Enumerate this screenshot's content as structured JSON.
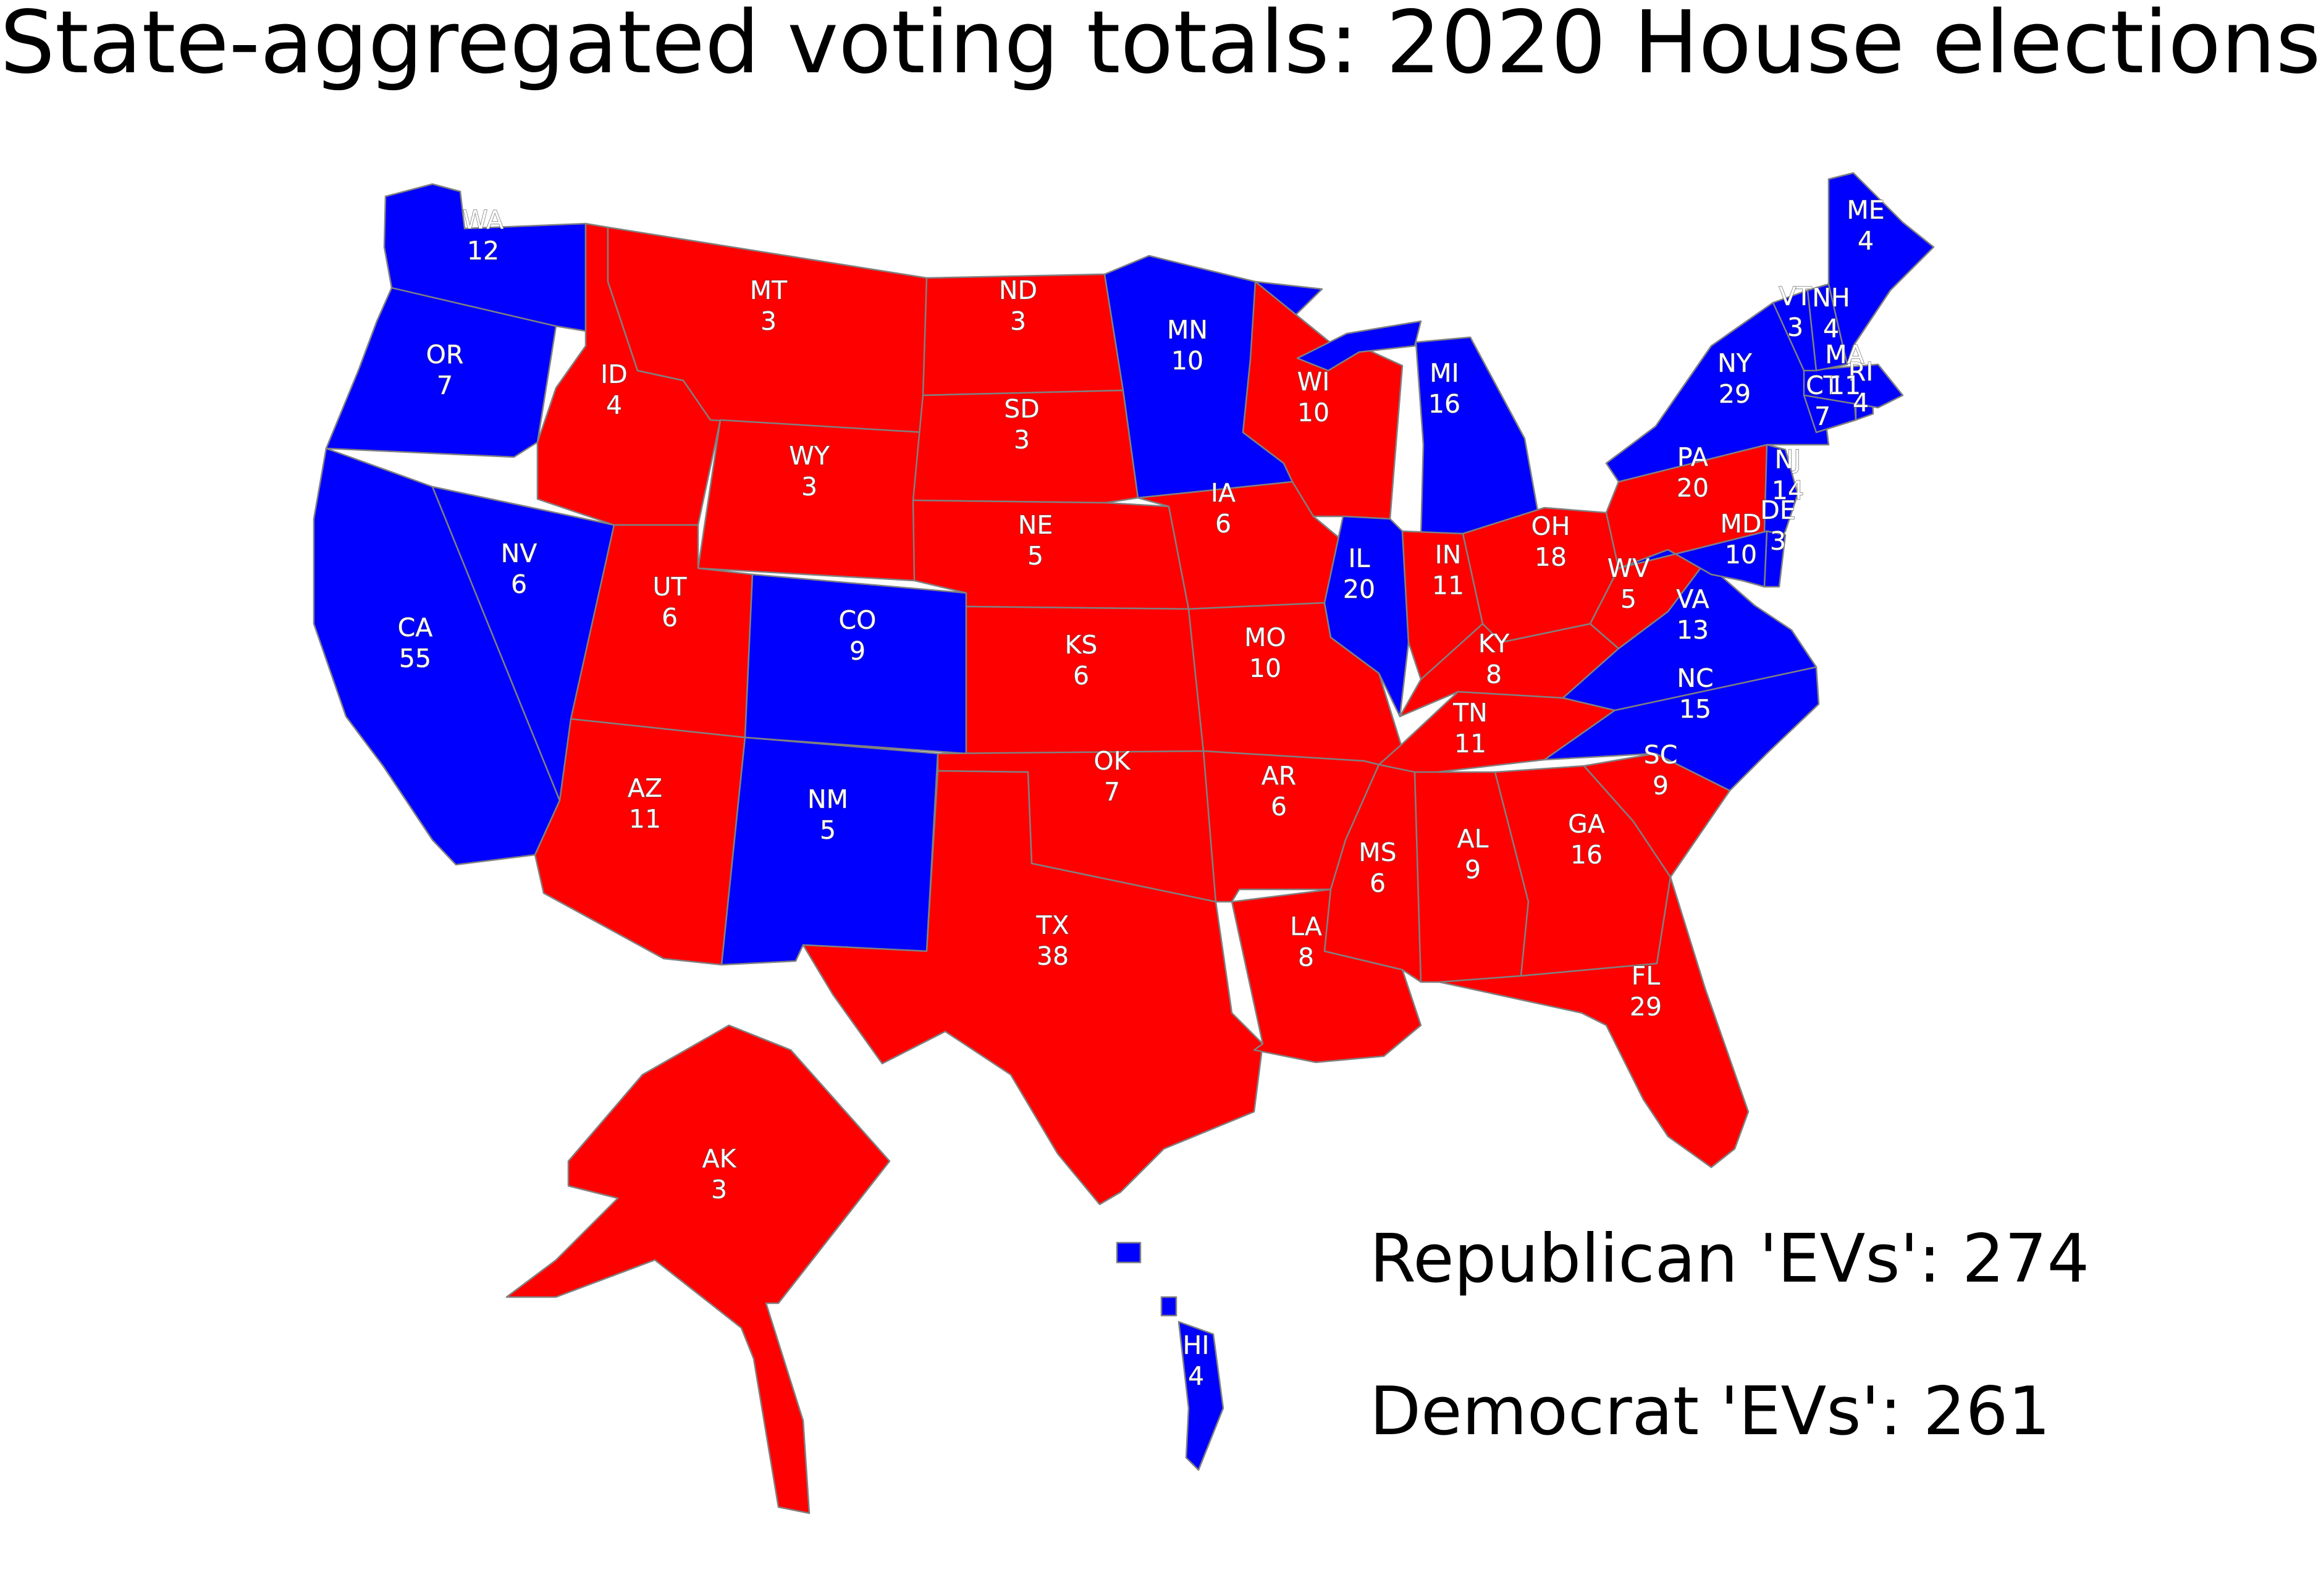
{
  "title": "State-aggregated voting totals: 2020 House elections",
  "colors": {
    "Republican": "#ff0000",
    "Democrat": "#0000ff",
    "border": "#808080"
  },
  "totals": {
    "republican": "Republican 'EVs': 274",
    "democrat": "Democrat 'EVs': 261"
  },
  "states": [
    {
      "abbr": "WA",
      "ev": 12,
      "party": "Democrat"
    },
    {
      "abbr": "OR",
      "ev": 7,
      "party": "Democrat"
    },
    {
      "abbr": "CA",
      "ev": 55,
      "party": "Democrat"
    },
    {
      "abbr": "NV",
      "ev": 6,
      "party": "Democrat"
    },
    {
      "abbr": "ID",
      "ev": 4,
      "party": "Republican"
    },
    {
      "abbr": "MT",
      "ev": 3,
      "party": "Republican"
    },
    {
      "abbr": "WY",
      "ev": 3,
      "party": "Republican"
    },
    {
      "abbr": "UT",
      "ev": 6,
      "party": "Republican"
    },
    {
      "abbr": "CO",
      "ev": 9,
      "party": "Democrat"
    },
    {
      "abbr": "AZ",
      "ev": 11,
      "party": "Republican"
    },
    {
      "abbr": "NM",
      "ev": 5,
      "party": "Democrat"
    },
    {
      "abbr": "ND",
      "ev": 3,
      "party": "Republican"
    },
    {
      "abbr": "SD",
      "ev": 3,
      "party": "Republican"
    },
    {
      "abbr": "NE",
      "ev": 5,
      "party": "Republican"
    },
    {
      "abbr": "KS",
      "ev": 6,
      "party": "Republican"
    },
    {
      "abbr": "OK",
      "ev": 7,
      "party": "Republican"
    },
    {
      "abbr": "TX",
      "ev": 38,
      "party": "Republican"
    },
    {
      "abbr": "MN",
      "ev": 10,
      "party": "Democrat"
    },
    {
      "abbr": "IA",
      "ev": 6,
      "party": "Republican"
    },
    {
      "abbr": "MO",
      "ev": 10,
      "party": "Republican"
    },
    {
      "abbr": "AR",
      "ev": 6,
      "party": "Republican"
    },
    {
      "abbr": "LA",
      "ev": 8,
      "party": "Republican"
    },
    {
      "abbr": "WI",
      "ev": 10,
      "party": "Republican"
    },
    {
      "abbr": "IL",
      "ev": 20,
      "party": "Democrat"
    },
    {
      "abbr": "MI",
      "ev": 16,
      "party": "Democrat"
    },
    {
      "abbr": "IN",
      "ev": 11,
      "party": "Republican"
    },
    {
      "abbr": "OH",
      "ev": 18,
      "party": "Republican"
    },
    {
      "abbr": "KY",
      "ev": 8,
      "party": "Republican"
    },
    {
      "abbr": "TN",
      "ev": 11,
      "party": "Republican"
    },
    {
      "abbr": "MS",
      "ev": 6,
      "party": "Republican"
    },
    {
      "abbr": "AL",
      "ev": 9,
      "party": "Republican"
    },
    {
      "abbr": "GA",
      "ev": 16,
      "party": "Republican"
    },
    {
      "abbr": "FL",
      "ev": 29,
      "party": "Republican"
    },
    {
      "abbr": "SC",
      "ev": 9,
      "party": "Republican"
    },
    {
      "abbr": "NC",
      "ev": 15,
      "party": "Democrat"
    },
    {
      "abbr": "VA",
      "ev": 13,
      "party": "Democrat"
    },
    {
      "abbr": "WV",
      "ev": 5,
      "party": "Republican"
    },
    {
      "abbr": "PA",
      "ev": 20,
      "party": "Republican"
    },
    {
      "abbr": "NY",
      "ev": 29,
      "party": "Democrat"
    },
    {
      "abbr": "NJ",
      "ev": 14,
      "party": "Democrat"
    },
    {
      "abbr": "DE",
      "ev": 3,
      "party": "Democrat"
    },
    {
      "abbr": "MD",
      "ev": 10,
      "party": "Democrat"
    },
    {
      "abbr": "CT",
      "ev": 7,
      "party": "Democrat"
    },
    {
      "abbr": "RI",
      "ev": 4,
      "party": "Democrat"
    },
    {
      "abbr": "MA",
      "ev": 11,
      "party": "Democrat"
    },
    {
      "abbr": "VT",
      "ev": 3,
      "party": "Democrat"
    },
    {
      "abbr": "NH",
      "ev": 4,
      "party": "Democrat"
    },
    {
      "abbr": "ME",
      "ev": 4,
      "party": "Democrat"
    },
    {
      "abbr": "AK",
      "ev": 3,
      "party": "Republican"
    },
    {
      "abbr": "HI",
      "ev": 4,
      "party": "Democrat"
    }
  ]
}
